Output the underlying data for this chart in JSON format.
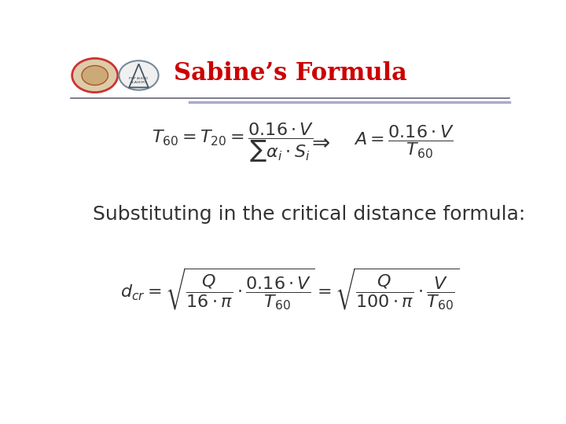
{
  "title": "Sabine’s Formula",
  "title_color": "#CC0000",
  "title_fontsize": 22,
  "bg_color": "#ffffff",
  "subtitle_text": "Substituting in the critical distance formula:",
  "subtitle_fontsize": 18,
  "eq_fontsize": 16,
  "header_line_color1": "#666677",
  "header_line_color2": "#aaaacc"
}
